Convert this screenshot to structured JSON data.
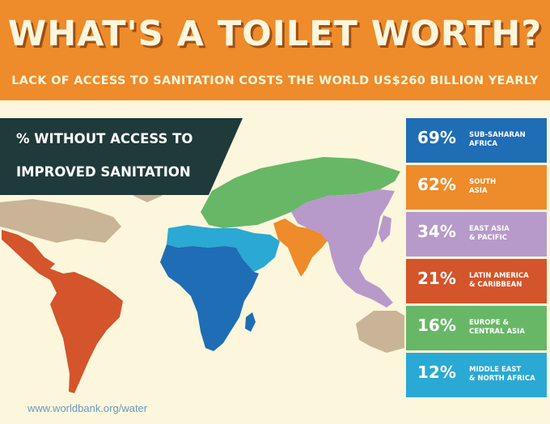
{
  "header": {
    "title": "WHAT'S A TOILET WORTH?",
    "subtitle": "LACK OF ACCESS TO SANITATION COSTS THE WORLD US$260 BILLION YEARLY"
  },
  "banner": {
    "line1": "% WITHOUT ACCESS TO",
    "line2": "IMPROVED SANITATION"
  },
  "legend": [
    {
      "percent": "69%",
      "region": "SUB-SAHARAN\nAFRICA",
      "color": "#1f6db5"
    },
    {
      "percent": "62%",
      "region": "SOUTH\nASIA",
      "color": "#ee8b2a"
    },
    {
      "percent": "34%",
      "region": "EAST ASIA\n& PACIFIC",
      "color": "#b79ac9"
    },
    {
      "percent": "21%",
      "region": "LATIN AMERICA\n& CARIBBEAN",
      "color": "#d4542b"
    },
    {
      "percent": "16%",
      "region": "EUROPE &\nCENTRAL ASIA",
      "color": "#68b766"
    },
    {
      "percent": "12%",
      "region": "MIDDLE EAST\n& NORTH AFRICA",
      "color": "#2aa9d4"
    }
  ],
  "footer": {
    "link": "www.worldbank.org/water"
  },
  "colors": {
    "header_bg": "#ee8b2a",
    "page_bg": "#fbf6dc",
    "banner_bg": "#1f3a3a",
    "other_land": "#c9b497"
  }
}
